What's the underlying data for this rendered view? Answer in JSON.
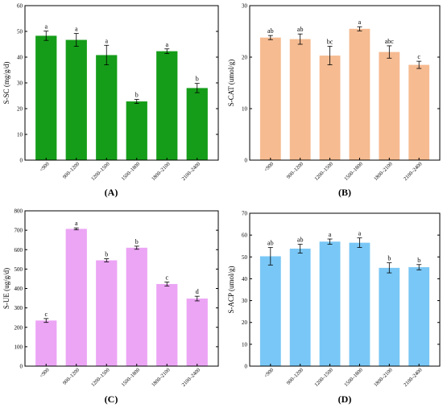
{
  "chart_data": [
    {
      "type": "bar",
      "panel_label": "(A)",
      "ylabel": "S-SC (mg/g/d)",
      "ylim": [
        0,
        60
      ],
      "yticks": [
        0,
        10,
        20,
        30,
        40,
        50,
        60
      ],
      "categories": [
        "<900",
        "900–1200",
        "1200–1500",
        "1500–1800",
        "1800–2100",
        "2100–2400"
      ],
      "values": [
        48.3,
        46.7,
        40.8,
        22.8,
        42.3,
        28.0
      ],
      "errors": [
        1.8,
        2.5,
        3.8,
        0.8,
        0.9,
        1.8
      ],
      "letters": [
        "a",
        "a",
        "a",
        "b",
        "a",
        "b"
      ],
      "color": "#159d19"
    },
    {
      "type": "bar",
      "panel_label": "(B)",
      "ylabel": "S-CAT (umol/g)",
      "ylim": [
        0,
        30
      ],
      "yticks": [
        0,
        10,
        20,
        30
      ],
      "categories": [
        "<900",
        "900–1200",
        "1200–1500",
        "1500–1800",
        "1800–2100",
        "2100–2400"
      ],
      "values": [
        23.8,
        23.5,
        20.3,
        25.5,
        21.0,
        18.5
      ],
      "errors": [
        0.4,
        1.0,
        1.8,
        0.4,
        1.2,
        0.7
      ],
      "letters": [
        "ab",
        "ab",
        "bc",
        "a",
        "abc",
        "c"
      ],
      "color": "#f6bb91"
    },
    {
      "type": "bar",
      "panel_label": "(C)",
      "ylabel": "S-UE (ug/g/d)",
      "ylim": [
        0,
        800
      ],
      "yticks": [
        0,
        100,
        200,
        300,
        400,
        500,
        600,
        700,
        800
      ],
      "categories": [
        "<900",
        "900–1200",
        "1200–1500",
        "1500–1800",
        "1800–2100",
        "2100–2400"
      ],
      "values": [
        235,
        707,
        545,
        610,
        423,
        348
      ],
      "errors": [
        10,
        5,
        8,
        8,
        10,
        12
      ],
      "letters": [
        "c",
        "a",
        "b",
        "b",
        "c",
        "d"
      ],
      "color": "#eca5f5"
    },
    {
      "type": "bar",
      "panel_label": "(D)",
      "ylabel": "S-ACP (umol/g)",
      "ylim": [
        0,
        70
      ],
      "yticks": [
        0,
        10,
        20,
        30,
        40,
        50,
        60,
        70
      ],
      "categories": [
        "<900",
        "900–1200",
        "1200–1500",
        "1500–1800",
        "1800–2100",
        "2100–2400"
      ],
      "values": [
        50.3,
        53.8,
        57.0,
        56.5,
        45.0,
        45.3
      ],
      "errors": [
        4.0,
        2.0,
        1.2,
        2.2,
        2.3,
        1.2
      ],
      "letters": [
        "ab",
        "ab",
        "a",
        "a",
        "b",
        "b"
      ],
      "color": "#79c7f6"
    }
  ]
}
